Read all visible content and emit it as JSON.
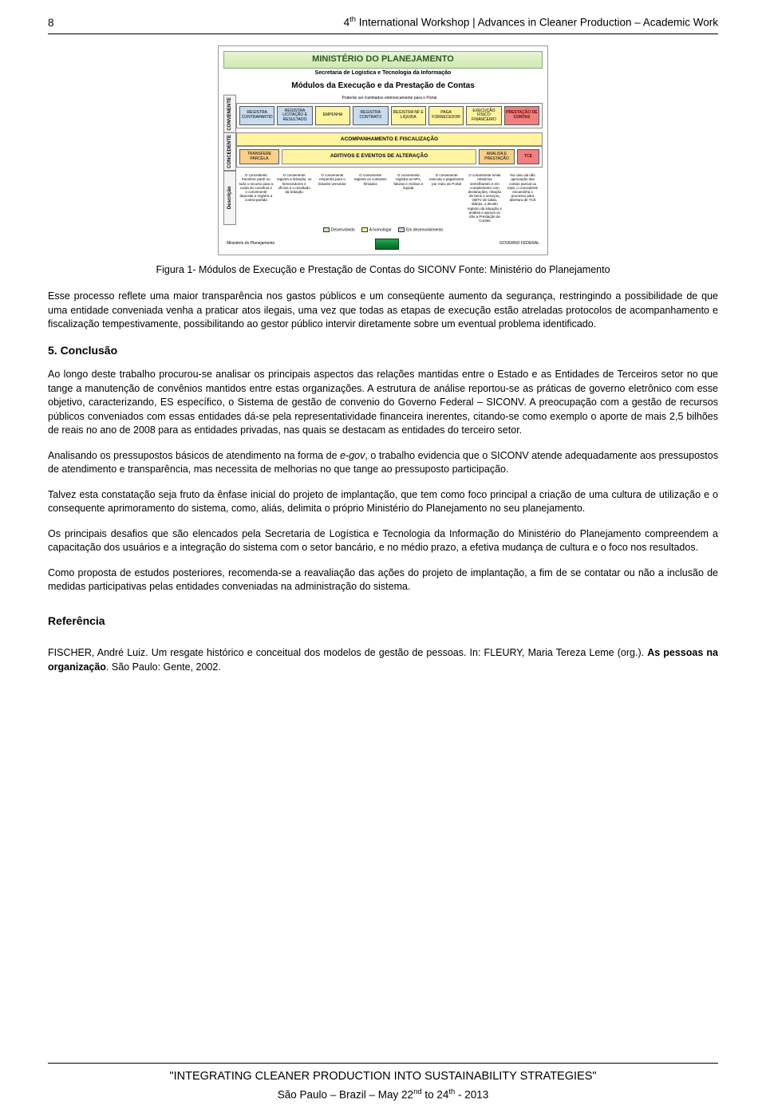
{
  "header": {
    "page_number": "8",
    "title_prefix": "4",
    "title_sup": "th",
    "title_rest": " International Workshop | Advances in Cleaner Production – Academic Work"
  },
  "figure": {
    "ministry": "MINISTÉRIO DO PLANEJAMENTO",
    "subtitle": "Secretaria de Logística e Tecnologia da Informação",
    "title": "Módulos da Execução e da Prestação de Contas",
    "note_top": "Poderão ser tramitados eletronicamente para o Portal",
    "side_labels": [
      "CONVENENTE",
      "CONCEDENTE",
      "Descrição"
    ],
    "row1_boxes": [
      "REGISTRA CONTRAPARTID",
      "REGISTRA LICITAÇÃO E RESULTADO",
      "EMPENHA",
      "REGISTRA CONTRATO",
      "REGISTRA NF E LIQUIDA",
      "PAGA FORNECEDOR",
      "EXECUÇÃO FÍSICO FINANCEIRO",
      "PRESTAÇÃO DE CONTAS"
    ],
    "row1_colors": [
      "b-blue",
      "b-blue",
      "b-yellow",
      "b-blue",
      "b-yellow",
      "b-yellow",
      "b-yellow",
      "b-red"
    ],
    "banner1": "ACOMPANHAMENTO E FISCALIZAÇÃO",
    "row2a_boxes": [
      "TRANSFERE PARCELA"
    ],
    "row2a_colors": [
      "b-orange"
    ],
    "banner2": "ADITIVOS E EVENTOS DE ALTERAÇÃO",
    "row2b_boxes": [
      "ANALISA E PRESTAÇÃO",
      "TCE"
    ],
    "row2b_colors": [
      "b-orange",
      "b-red"
    ],
    "descriptions": [
      "O concedente transfere parte ou todo o recurso para a conta do convênio e o convenente deposita e registra a contra-partida",
      "O convenente registra a licitação, os fornecedores e ofícios e o resultado da licitação",
      "O convenente empenha para o licitante vencedor",
      "O convenente registra os contratos firmados",
      "O convenente registra as NFs, faturas e recibos e liquida",
      "O convenente executa o pagamento por meio do Portal",
      "O convenente emite relatórios semelhantes e em complemento com declarações, relação de bens e serviços, OBTV de saldo, diárias, o devido registro da situação e analisa e aprova ou não a Prestação de Contas",
      "No caso da não aprovação das contas parcial ou total, o concedente encaminha o processo para abertura de TCE"
    ],
    "legend": [
      {
        "color": "b-green",
        "label": "Desenvolvido"
      },
      {
        "color": "b-yellow",
        "label": "A homologar"
      },
      {
        "color": "b-blue",
        "label": "Em desenvolvimento"
      }
    ],
    "footer_left": "Ministério do Planejamento",
    "footer_right": "GOVERNO FEDERAL"
  },
  "caption": "Figura 1- Módulos de Execução e Prestação de Contas do SICONV Fonte: Ministério do Planejamento",
  "para1": "Esse processo reflete uma maior transparência nos gastos públicos e um conseqüente aumento da segurança, restringindo a possibilidade de que uma entidade conveniada venha a praticar atos ilegais, uma vez que todas as etapas de execução estão atreladas protocolos de acompanhamento e fiscalização tempestivamente, possibilitando ao gestor público intervir diretamente sobre um eventual problema identificado.",
  "section5_title": "5. Conclusão",
  "para2": "Ao longo deste trabalho procurou-se analisar os principais aspectos das relações mantidas entre o Estado e as Entidades de Terceiros setor no que tange a manutenção de convênios mantidos entre estas organizações. A estrutura de análise reportou-se as práticas de governo eletrônico com esse objetivo, caracterizando, ES específico, o Sistema de gestão de convenio do Governo Federal – SICONV. A preocupação com a gestão de recursos públicos conveniados com essas entidades dá-se pela representatividade financeira inerentes, citando-se como exemplo o aporte de mais 2,5 bilhões de reais no ano de 2008 para as entidades privadas, nas quais se destacam as entidades do terceiro setor.",
  "para3_a": "Analisando os pressupostos básicos de atendimento na forma de ",
  "para3_egov": "e-gov",
  "para3_b": ", o trabalho evidencia que o SICONV atende adequadamente aos pressupostos de atendimento e transparência, mas necessita de melhorias no que tange ao pressuposto participação.",
  "para4": "Talvez esta constatação seja fruto da ênfase inicial do projeto de implantação, que tem como foco principal a criação de uma cultura de utilização e o consequente aprimoramento do sistema, como, aliás, delimita o próprio Ministério do Planejamento no seu planejamento.",
  "para5": "Os principais desafios que são elencados pela Secretaria de Logística e Tecnologia da Informação do Ministério do Planejamento compreendem a capacitação dos usuários e a integração do sistema com o setor bancário, e no médio prazo, a efetiva mudança de cultura e o foco nos resultados.",
  "para6": "Como proposta de estudos posteriores, recomenda-se a reavaliação das ações do projeto de implantação, a fim de se contatar ou não a inclusão de medidas participativas pelas entidades conveniadas na administração do sistema.",
  "ref_title": "Referência",
  "ref_entry_a": "FISCHER, André Luiz. Um resgate histórico e conceitual dos modelos de gestão de pessoas. In: FLEURY, Maria Tereza Leme (org.). ",
  "ref_entry_bold": "As pessoas na organização",
  "ref_entry_b": ". São Paulo: Gente, 2002.",
  "footer": {
    "line1": "\"INTEGRATING CLEANER PRODUCTION INTO SUSTAINABILITY STRATEGIES\"",
    "line2_a": "São Paulo – Brazil – May 22",
    "line2_sup1": "nd",
    "line2_b": " to 24",
    "line2_sup2": "th",
    "line2_c": " - 2013"
  },
  "colors": {
    "text": "#000000",
    "rule": "#000000",
    "fig_green": "#c8e8b8",
    "fig_yellow": "#fff4a0",
    "fig_blue": "#c8dcf0",
    "fig_red": "#f08080",
    "fig_orange": "#f8d088"
  }
}
